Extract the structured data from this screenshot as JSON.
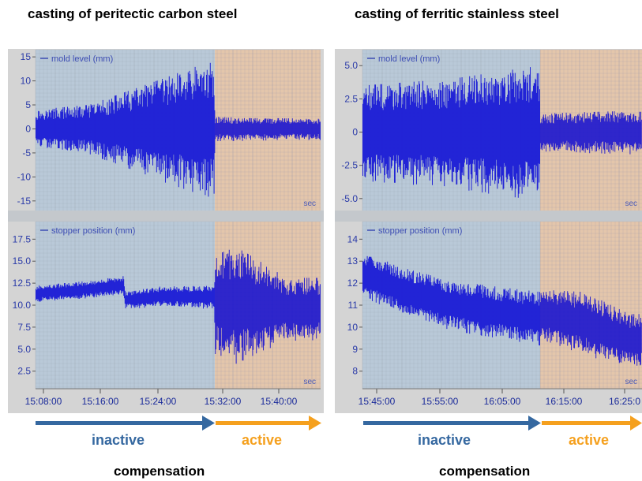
{
  "titles": {
    "left": "casting of peritectic carbon steel",
    "right": "casting of ferritic stainless steel"
  },
  "colors": {
    "inactive_zone": "#b9c9d8",
    "active_zone": "#f8dcae",
    "signal": "#1212d6",
    "inactive_arrow": "#3568a0",
    "active_arrow": "#f5a01e"
  },
  "labels": {
    "inactive": "inactive",
    "active": "active",
    "compensation": "compensation",
    "sec": "sec"
  },
  "chart_data": [
    {
      "type": "line",
      "title": "casting of peritectic carbon steel",
      "x_ticks": [
        "15:08:00",
        "15:16:00",
        "15:24:00",
        "15:32:00",
        "15:40:00"
      ],
      "compensation_switch": "15:32:00",
      "subplots": [
        {
          "legend": "mold level (mm)",
          "ylim": [
            -17,
            16.5
          ],
          "yticks": [
            "15",
            "10",
            "5",
            "0",
            "-5",
            "-10",
            "-15"
          ],
          "ytick_values": [
            15,
            10,
            5,
            0,
            -5,
            -10,
            -15
          ],
          "baseline": [
            [
              0,
              0
            ],
            [
              0.6,
              0
            ],
            [
              1,
              0
            ]
          ],
          "amplitude": [
            [
              0,
              4
            ],
            [
              0.15,
              4.5
            ],
            [
              0.3,
              5
            ],
            [
              0.45,
              7
            ],
            [
              0.6,
              9
            ],
            [
              0.75,
              11
            ],
            [
              0.85,
              12.5
            ],
            [
              0.999,
              14
            ],
            [
              1.0,
              2.5
            ],
            [
              1.4,
              2.2
            ]
          ]
        },
        {
          "legend": "stopper position (mm)",
          "ylim": [
            0.5,
            19.5
          ],
          "yticks": [
            "17.5",
            "15.0",
            "12.5",
            "10.0",
            "7.5",
            "5.0",
            "2.5"
          ],
          "ytick_values": [
            17.5,
            15.0,
            12.5,
            10.0,
            7.5,
            5.0,
            2.5
          ],
          "baseline": [
            [
              0,
              11.3
            ],
            [
              0.3,
              11.8
            ],
            [
              0.49,
              12.3
            ],
            [
              0.5,
              10.6
            ],
            [
              0.7,
              11.0
            ],
            [
              0.999,
              10.9
            ],
            [
              1.0,
              10.2
            ],
            [
              1.2,
              10.0
            ],
            [
              1.4,
              9.6
            ]
          ],
          "amplitude": [
            [
              0,
              0.9
            ],
            [
              0.5,
              1.0
            ],
            [
              0.999,
              1.3
            ],
            [
              1.0,
              5.5
            ],
            [
              1.12,
              6.5
            ],
            [
              1.4,
              3.5
            ]
          ]
        }
      ]
    },
    {
      "type": "line",
      "title": "casting of ferritic stainless steel",
      "x_ticks": [
        "15:45:00",
        "15:55:00",
        "16:05:00",
        "16:15:00",
        "16:25:0"
      ],
      "compensation_switch": "16:10:00",
      "subplots": [
        {
          "legend": "mold level (mm)",
          "ylim": [
            -5.9,
            6.2
          ],
          "yticks": [
            "5.0",
            "2.5",
            "0",
            "-2.5",
            "-5.0"
          ],
          "ytick_values": [
            5.0,
            2.5,
            0,
            -2.5,
            -5.0
          ],
          "baseline": [
            [
              0,
              0
            ],
            [
              1,
              0
            ]
          ],
          "amplitude": [
            [
              0,
              3.5
            ],
            [
              0.5,
              4.0
            ],
            [
              0.999,
              5.0
            ],
            [
              1.0,
              1.4
            ],
            [
              1.5,
              1.6
            ]
          ]
        },
        {
          "legend": "stopper position (mm)",
          "ylim": [
            7.2,
            14.8
          ],
          "yticks": [
            "14",
            "13",
            "12",
            "11",
            "10",
            "9",
            "8"
          ],
          "ytick_values": [
            14,
            13,
            12,
            11,
            10,
            9,
            8
          ],
          "baseline": [
            [
              0,
              12.4
            ],
            [
              0.25,
              11.6
            ],
            [
              0.5,
              11.0
            ],
            [
              0.999,
              10.4
            ],
            [
              1.0,
              10.6
            ],
            [
              1.25,
              10.2
            ],
            [
              1.5,
              9.4
            ]
          ],
          "amplitude": [
            [
              0,
              1.0
            ],
            [
              0.5,
              1.1
            ],
            [
              0.999,
              1.2
            ],
            [
              1.0,
              1.1
            ],
            [
              1.25,
              1.4
            ],
            [
              1.5,
              1.2
            ]
          ]
        }
      ]
    }
  ]
}
